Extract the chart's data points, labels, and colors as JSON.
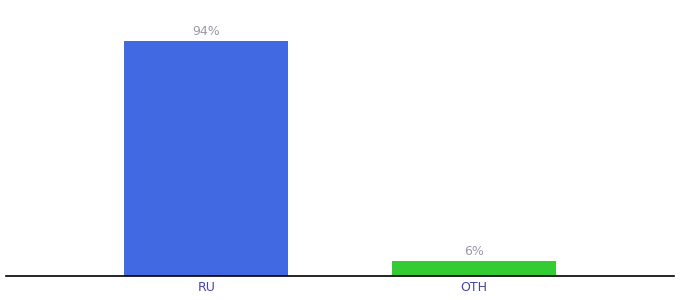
{
  "categories": [
    "RU",
    "OTH"
  ],
  "values": [
    94,
    6
  ],
  "bar_colors": [
    "#4169e1",
    "#33cc33"
  ],
  "label_texts": [
    "94%",
    "6%"
  ],
  "background_color": "#ffffff",
  "text_color": "#9999aa",
  "tick_color": "#4444aa",
  "bar_width": 0.22,
  "figsize": [
    6.8,
    3.0
  ],
  "dpi": 100,
  "ylim": [
    0,
    108
  ],
  "label_fontsize": 9,
  "tick_fontsize": 9,
  "x_positions": [
    0.32,
    0.68
  ]
}
